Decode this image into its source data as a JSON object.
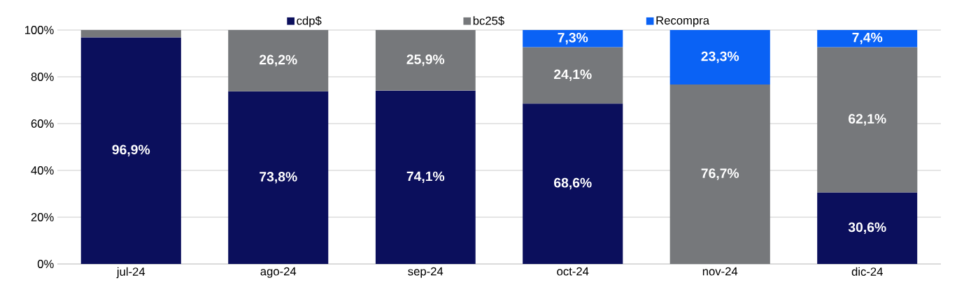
{
  "chart_data": {
    "type": "bar",
    "stacked": true,
    "categories": [
      "jul-24",
      "ago-24",
      "sep-24",
      "oct-24",
      "nov-24",
      "dic-24"
    ],
    "series": [
      {
        "name": "cdp$",
        "color": "#0b0f5c",
        "values": [
          96.9,
          73.8,
          74.1,
          68.6,
          null,
          30.6
        ],
        "value_labels": [
          "96,9%",
          "73,8%",
          "74,1%",
          "68,6%",
          null,
          "30,6%"
        ]
      },
      {
        "name": "bc25$",
        "color": "#76787b",
        "values": [
          3.1,
          26.2,
          25.9,
          24.1,
          76.7,
          62.1
        ],
        "value_labels": [
          null,
          "26,2%",
          "25,9%",
          "24,1%",
          "76,7%",
          "62,1%"
        ]
      },
      {
        "name": "Recompra",
        "color": "#0a62f5",
        "values": [
          null,
          null,
          null,
          7.3,
          23.3,
          7.4
        ],
        "value_labels": [
          null,
          null,
          null,
          "7,3%",
          "23,3%",
          "7,4%"
        ]
      }
    ],
    "ylim": [
      0,
      100
    ],
    "yticks": [
      {
        "value": 0,
        "label": "0%"
      },
      {
        "value": 20,
        "label": "20%"
      },
      {
        "value": 40,
        "label": "40%"
      },
      {
        "value": 60,
        "label": "60%"
      },
      {
        "value": 80,
        "label": "80%"
      },
      {
        "value": 100,
        "label": "100%"
      }
    ],
    "grid": "y",
    "legend": "top"
  }
}
